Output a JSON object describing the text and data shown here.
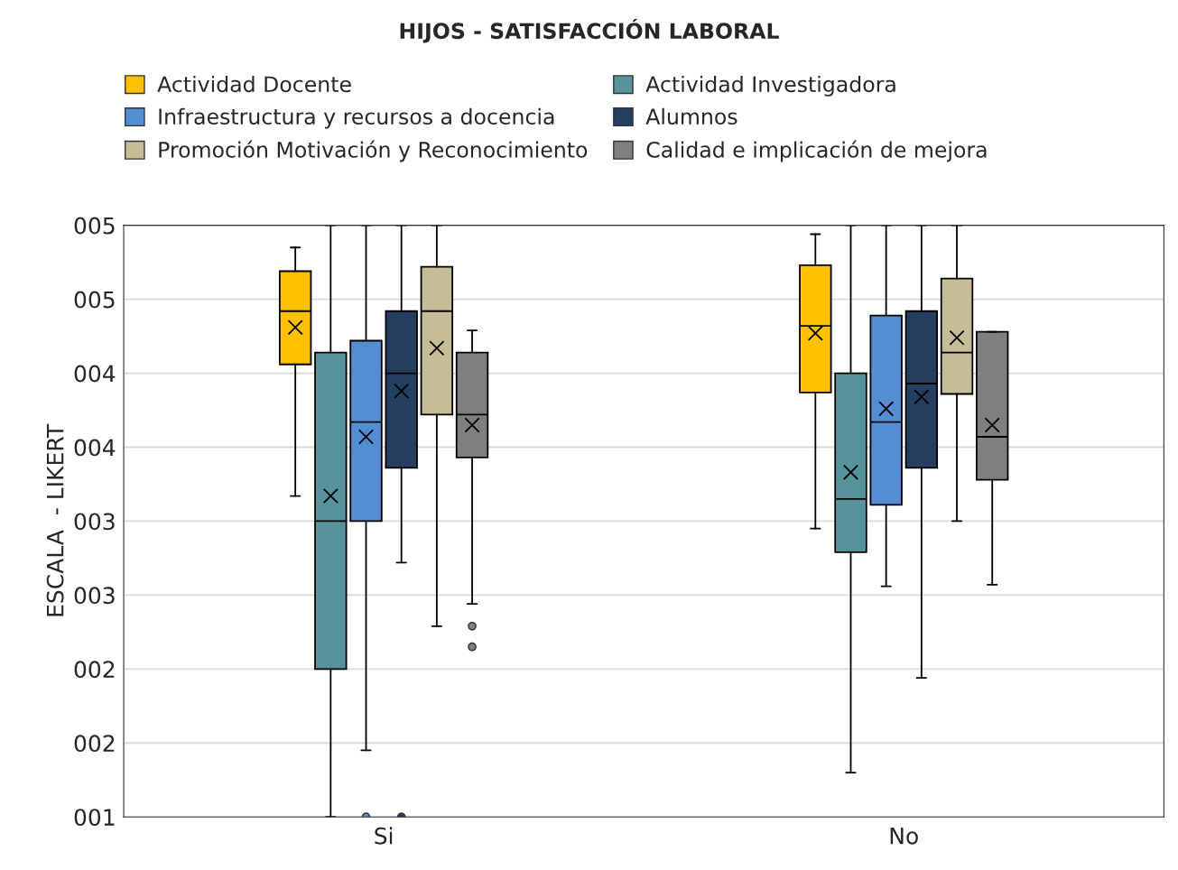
{
  "chart_data": {
    "type": "box",
    "title": "HIJOS - SATISFACCIÓN LABORAL",
    "ylabel": "ESCALA  - LIKERT",
    "categories": [
      "Si",
      "No"
    ],
    "ylim": [
      1,
      5
    ],
    "yticks": [
      {
        "value": 1,
        "label": "001"
      },
      {
        "value": 1.5,
        "label": "002"
      },
      {
        "value": 2,
        "label": "002"
      },
      {
        "value": 2.5,
        "label": "003"
      },
      {
        "value": 3,
        "label": "003"
      },
      {
        "value": 3.5,
        "label": "004"
      },
      {
        "value": 4,
        "label": "004"
      },
      {
        "value": 4.5,
        "label": "005"
      },
      {
        "value": 5,
        "label": "005"
      }
    ],
    "grid": "y",
    "legend": "top",
    "marker": "cross",
    "series": [
      {
        "name": "Actividad Docente",
        "color": "#ffc000",
        "boxes": [
          {
            "low": 3.17,
            "q1": 4.06,
            "median": 4.42,
            "q3": 4.69,
            "high": 4.85,
            "mean": 4.31
          },
          {
            "low": 2.95,
            "q1": 3.87,
            "median": 4.32,
            "q3": 4.73,
            "high": 4.94,
            "mean": 4.27
          }
        ]
      },
      {
        "name": "Actividad Investigadora",
        "color": "#56939b",
        "boxes": [
          {
            "low": 1.0,
            "q1": 2.0,
            "median": 3.0,
            "q3": 4.14,
            "high": 5.0,
            "mean": 3.17
          },
          {
            "low": 1.3,
            "q1": 2.79,
            "median": 3.15,
            "q3": 4.0,
            "high": 5.0,
            "mean": 3.33
          }
        ]
      },
      {
        "name": "Infraestructura y recursos a docencia",
        "color": "#548dd4",
        "boxes": [
          {
            "low": 1.45,
            "q1": 3.0,
            "median": 3.67,
            "q3": 4.22,
            "high": 5.0,
            "mean": 3.57,
            "outliers": [
              1.0
            ]
          },
          {
            "low": 2.56,
            "q1": 3.11,
            "median": 3.67,
            "q3": 4.39,
            "high": 5.0,
            "mean": 3.76
          }
        ]
      },
      {
        "name": "Alumnos",
        "color": "#243f60",
        "boxes": [
          {
            "low": 2.72,
            "q1": 3.36,
            "median": 4.0,
            "q3": 4.42,
            "high": 5.0,
            "mean": 3.88,
            "outliers": [
              1.0
            ]
          },
          {
            "low": 1.94,
            "q1": 3.36,
            "median": 3.93,
            "q3": 4.42,
            "high": 5.0,
            "mean": 3.84
          }
        ]
      },
      {
        "name": "Promoción Motivación y Reconocimiento",
        "color": "#c4bd97",
        "boxes": [
          {
            "low": 2.29,
            "q1": 3.72,
            "median": 4.42,
            "q3": 4.72,
            "high": 5.0,
            "mean": 4.17
          },
          {
            "low": 3.0,
            "q1": 3.86,
            "median": 4.14,
            "q3": 4.64,
            "high": 5.0,
            "mean": 4.24
          }
        ]
      },
      {
        "name": "Calidad e implicación de mejora",
        "color": "#7f7f7f",
        "boxes": [
          {
            "low": 2.44,
            "q1": 3.43,
            "median": 3.72,
            "q3": 4.14,
            "high": 4.29,
            "mean": 3.65,
            "outliers": [
              2.29,
              2.15
            ]
          },
          {
            "low": 2.57,
            "q1": 3.28,
            "median": 3.57,
            "q3": 4.28,
            "high": 4.28,
            "mean": 3.65
          }
        ]
      }
    ]
  }
}
